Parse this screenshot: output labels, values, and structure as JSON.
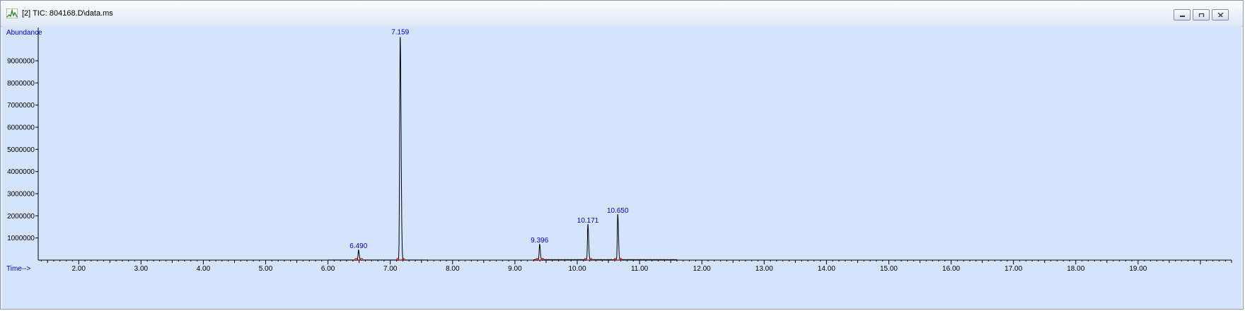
{
  "window": {
    "title": "[2] TIC: 804168.D\\data.ms",
    "controls": [
      "minimize",
      "restore",
      "close"
    ]
  },
  "chart_data": {
    "type": "line",
    "title": "",
    "xlabel": "Time-->",
    "ylabel": "Abundance",
    "xlim": [
      1.35,
      20.5
    ],
    "ylim": [
      0,
      10500000
    ],
    "x_ticks": [
      "2.00",
      "3.00",
      "4.00",
      "5.00",
      "6.00",
      "7.00",
      "8.00",
      "9.00",
      "10.00",
      "11.00",
      "12.00",
      "13.00",
      "14.00",
      "15.00",
      "16.00",
      "17.00",
      "18.00",
      "19.00"
    ],
    "y_ticks": [
      "1000000",
      "2000000",
      "3000000",
      "4000000",
      "5000000",
      "6000000",
      "7000000",
      "8000000",
      "9000000"
    ],
    "grid": false,
    "series_color": "#000000",
    "label_color": "#0000cc",
    "peaks": [
      {
        "label": "6.490",
        "rt": 6.49,
        "height": 450000
      },
      {
        "label": "7.159",
        "rt": 7.159,
        "height": 10100000
      },
      {
        "label": "9.396",
        "rt": 9.396,
        "height": 700000
      },
      {
        "label": "10.171",
        "rt": 10.171,
        "height": 1600000
      },
      {
        "label": "10.650",
        "rt": 10.65,
        "height": 2050000
      }
    ]
  }
}
